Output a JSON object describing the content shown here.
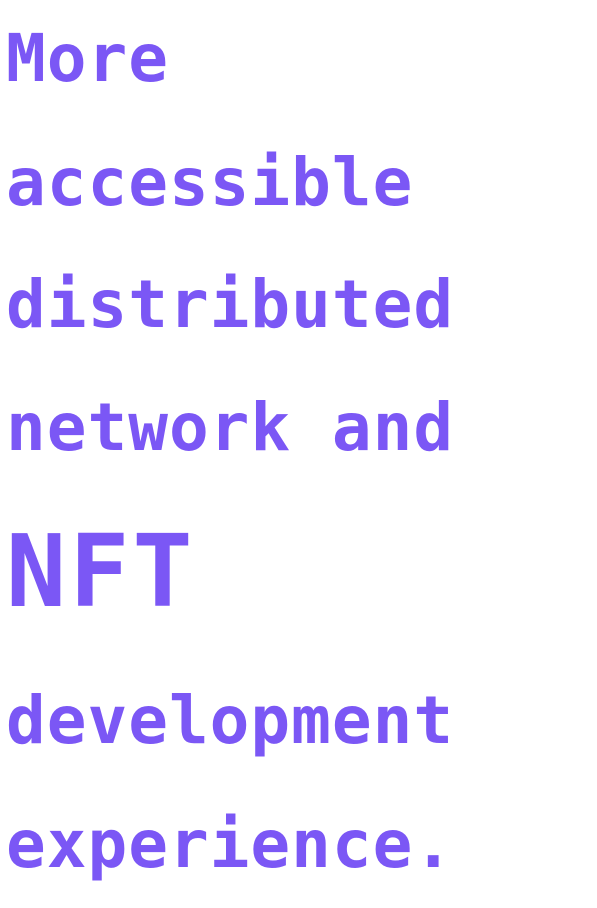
{
  "headline": {
    "lines": [
      "More",
      "accessible",
      "distributed",
      "network and",
      "NFT",
      "development",
      "experience."
    ],
    "color": "#7b57f5"
  }
}
